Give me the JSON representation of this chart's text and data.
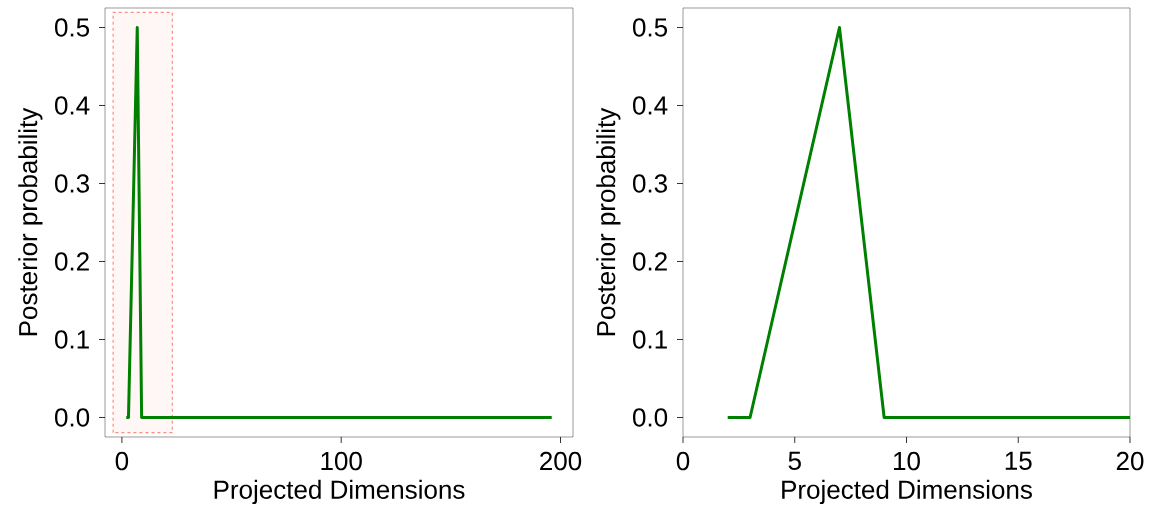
{
  "chart_data": [
    {
      "type": "line",
      "xlabel": "Projected Dimensions",
      "ylabel": "Posterior probability",
      "xlim": [
        -7.7,
        205.7
      ],
      "ylim": [
        -0.025,
        0.525
      ],
      "xticks": [
        0,
        100,
        200
      ],
      "yticks": [
        {
          "value": 0,
          "label": "0.0"
        },
        0.1,
        0.2,
        0.3,
        0.4,
        0.5
      ],
      "series": [
        {
          "color": "#008000",
          "x": [
            2,
            3,
            7,
            9,
            196
          ],
          "values": [
            0,
            0,
            0.5,
            0,
            0
          ]
        }
      ],
      "bands": [
        {
          "axis": "x",
          "from": -4,
          "to": 23,
          "color": "#ff8c7f"
        }
      ]
    },
    {
      "type": "line",
      "xlabel": "Projected Dimensions",
      "ylabel": "Posterior probability",
      "xlim": [
        0,
        20
      ],
      "ylim": [
        -0.025,
        0.525
      ],
      "xticks": [
        0,
        5,
        10,
        15,
        20
      ],
      "yticks": [
        {
          "value": 0,
          "label": "0.0"
        },
        0.1,
        0.2,
        0.3,
        0.4,
        0.5
      ],
      "series": [
        {
          "color": "#008000",
          "x": [
            2,
            3,
            7,
            9,
            20
          ],
          "values": [
            0,
            0,
            0.5,
            0,
            0
          ]
        }
      ]
    }
  ]
}
